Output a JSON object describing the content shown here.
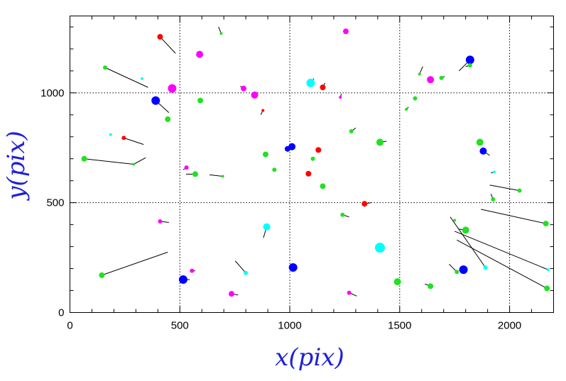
{
  "chart_data": {
    "type": "scatter",
    "title": "",
    "xlabel": "x(pix)",
    "ylabel": "y(pix)",
    "xlim": [
      0,
      2200
    ],
    "ylim": [
      0,
      1350
    ],
    "xticks": [
      0,
      500,
      1000,
      1500,
      2000
    ],
    "yticks": [
      0,
      500,
      1000
    ],
    "x_grid_dotted": [
      500,
      1000,
      1500,
      2000
    ],
    "y_grid_dotted": [
      500,
      1000
    ],
    "colors": {
      "green": "#22e022",
      "magenta": "#ff00ff",
      "red": "#ff0000",
      "blue": "#0000ff",
      "cyan": "#00ffff",
      "axis": "#2020d8"
    },
    "points": [
      {
        "x": 410,
        "y": 1255,
        "c": "red",
        "s": 4,
        "vx": 480,
        "vy": 1180
      },
      {
        "x": 688,
        "y": 1270,
        "c": "green",
        "s": 2,
        "vx": 676,
        "vy": 1300
      },
      {
        "x": 1255,
        "y": 1280,
        "c": "magenta",
        "s": 4
      },
      {
        "x": 590,
        "y": 1175,
        "c": "magenta",
        "s": 5
      },
      {
        "x": 160,
        "y": 1115,
        "c": "green",
        "s": 3,
        "vx": 355,
        "vy": 1025
      },
      {
        "x": 328,
        "y": 1065,
        "c": "cyan",
        "s": 2
      },
      {
        "x": 465,
        "y": 1020,
        "c": "magenta",
        "s": 6
      },
      {
        "x": 390,
        "y": 965,
        "c": "blue",
        "s": 6,
        "vx": 450,
        "vy": 910
      },
      {
        "x": 593,
        "y": 965,
        "c": "green",
        "s": 4
      },
      {
        "x": 790,
        "y": 1020,
        "c": "magenta",
        "s": 4,
        "vx": 775,
        "vy": 1030
      },
      {
        "x": 840,
        "y": 990,
        "c": "magenta",
        "s": 5
      },
      {
        "x": 878,
        "y": 920,
        "c": "red",
        "s": 2,
        "vx": 868,
        "vy": 900
      },
      {
        "x": 1095,
        "y": 1045,
        "c": "cyan",
        "s": 6,
        "vx": 1110,
        "vy": 1065
      },
      {
        "x": 1150,
        "y": 1025,
        "c": "red",
        "s": 4,
        "vx": 1160,
        "vy": 1045
      },
      {
        "x": 1230,
        "y": 980,
        "c": "magenta",
        "s": 2,
        "vx": 1235,
        "vy": 995
      },
      {
        "x": 445,
        "y": 880,
        "c": "green",
        "s": 4
      },
      {
        "x": 185,
        "y": 810,
        "c": "cyan",
        "s": 2
      },
      {
        "x": 245,
        "y": 795,
        "c": "red",
        "s": 3,
        "vx": 335,
        "vy": 765
      },
      {
        "x": 65,
        "y": 700,
        "c": "green",
        "s": 4,
        "vx": 290,
        "vy": 675
      },
      {
        "x": 290,
        "y": 675,
        "c": "green",
        "s": 2,
        "vx": 345,
        "vy": 705
      },
      {
        "x": 530,
        "y": 660,
        "c": "magenta",
        "s": 3,
        "vx": 515,
        "vy": 650
      },
      {
        "x": 570,
        "y": 630,
        "c": "green",
        "s": 4,
        "vx": 528,
        "vy": 630
      },
      {
        "x": 695,
        "y": 620,
        "c": "green",
        "s": 2,
        "vx": 635,
        "vy": 627
      },
      {
        "x": 890,
        "y": 720,
        "c": "green",
        "s": 4
      },
      {
        "x": 930,
        "y": 650,
        "c": "green",
        "s": 3
      },
      {
        "x": 990,
        "y": 745,
        "c": "blue",
        "s": 4
      },
      {
        "x": 1010,
        "y": 755,
        "c": "blue",
        "s": 5
      },
      {
        "x": 1130,
        "y": 740,
        "c": "red",
        "s": 4
      },
      {
        "x": 1105,
        "y": 700,
        "c": "green",
        "s": 3
      },
      {
        "x": 1085,
        "y": 632,
        "c": "red",
        "s": 4
      },
      {
        "x": 1150,
        "y": 575,
        "c": "green",
        "s": 4
      },
      {
        "x": 1280,
        "y": 825,
        "c": "green",
        "s": 3,
        "vx": 1300,
        "vy": 840
      },
      {
        "x": 1410,
        "y": 775,
        "c": "green",
        "s": 5,
        "vx": 1440,
        "vy": 780
      },
      {
        "x": 1340,
        "y": 495,
        "c": "red",
        "s": 4,
        "vx": 1370,
        "vy": 500
      },
      {
        "x": 1530,
        "y": 925,
        "c": "green",
        "s": 2,
        "vx": 1540,
        "vy": 935
      },
      {
        "x": 1570,
        "y": 975,
        "c": "green",
        "s": 3
      },
      {
        "x": 1590,
        "y": 1085,
        "c": "green",
        "s": 2,
        "vx": 1605,
        "vy": 1120
      },
      {
        "x": 1640,
        "y": 1060,
        "c": "magenta",
        "s": 5
      },
      {
        "x": 1690,
        "y": 1068,
        "c": "green",
        "s": 3,
        "vx": 1705,
        "vy": 1075
      },
      {
        "x": 1820,
        "y": 1150,
        "c": "blue",
        "s": 6,
        "vx": 1770,
        "vy": 1100
      },
      {
        "x": 1820,
        "y": 1125,
        "c": "green",
        "s": 3,
        "vx": 1800,
        "vy": 1120
      },
      {
        "x": 1865,
        "y": 775,
        "c": "green",
        "s": 5
      },
      {
        "x": 1880,
        "y": 735,
        "c": "blue",
        "s": 5,
        "vx": 1910,
        "vy": 715
      },
      {
        "x": 1930,
        "y": 640,
        "c": "cyan",
        "s": 2,
        "vx": 1915,
        "vy": 635
      },
      {
        "x": 2045,
        "y": 555,
        "c": "green",
        "s": 3,
        "vx": 1910,
        "vy": 580
      },
      {
        "x": 1925,
        "y": 515,
        "c": "green",
        "s": 3,
        "vx": 1915,
        "vy": 540
      },
      {
        "x": 2165,
        "y": 405,
        "c": "green",
        "s": 4,
        "vx": 1870,
        "vy": 470
      },
      {
        "x": 2175,
        "y": 195,
        "c": "cyan",
        "s": 2,
        "vx": 1750,
        "vy": 370
      },
      {
        "x": 2170,
        "y": 110,
        "c": "green",
        "s": 4,
        "vx": 1760,
        "vy": 330
      },
      {
        "x": 1800,
        "y": 375,
        "c": "green",
        "s": 5,
        "vx": 1770,
        "vy": 380
      },
      {
        "x": 1890,
        "y": 205,
        "c": "cyan",
        "s": 3,
        "vx": 1730,
        "vy": 435
      },
      {
        "x": 1750,
        "y": 420,
        "c": "green",
        "s": 2
      },
      {
        "x": 1790,
        "y": 195,
        "c": "blue",
        "s": 6
      },
      {
        "x": 1760,
        "y": 185,
        "c": "green",
        "s": 3,
        "vx": 1725,
        "vy": 220
      },
      {
        "x": 1640,
        "y": 120,
        "c": "green",
        "s": 4,
        "vx": 1615,
        "vy": 130
      },
      {
        "x": 1410,
        "y": 295,
        "c": "cyan",
        "s": 7
      },
      {
        "x": 1490,
        "y": 140,
        "c": "green",
        "s": 5
      },
      {
        "x": 1240,
        "y": 445,
        "c": "green",
        "s": 3,
        "vx": 1270,
        "vy": 435
      },
      {
        "x": 1270,
        "y": 90,
        "c": "magenta",
        "s": 3,
        "vx": 1305,
        "vy": 75
      },
      {
        "x": 1015,
        "y": 205,
        "c": "blue",
        "s": 6
      },
      {
        "x": 895,
        "y": 390,
        "c": "cyan",
        "s": 5,
        "vx": 880,
        "vy": 340
      },
      {
        "x": 800,
        "y": 180,
        "c": "cyan",
        "s": 3,
        "vx": 752,
        "vy": 235
      },
      {
        "x": 735,
        "y": 85,
        "c": "magenta",
        "s": 4,
        "vx": 765,
        "vy": 80
      },
      {
        "x": 515,
        "y": 150,
        "c": "blue",
        "s": 6,
        "vx": 545,
        "vy": 150
      },
      {
        "x": 555,
        "y": 190,
        "c": "magenta",
        "s": 3,
        "vx": 570,
        "vy": 190
      },
      {
        "x": 410,
        "y": 415,
        "c": "magenta",
        "s": 3,
        "vx": 450,
        "vy": 410
      },
      {
        "x": 145,
        "y": 170,
        "c": "green",
        "s": 4,
        "vx": 445,
        "vy": 275
      }
    ]
  }
}
